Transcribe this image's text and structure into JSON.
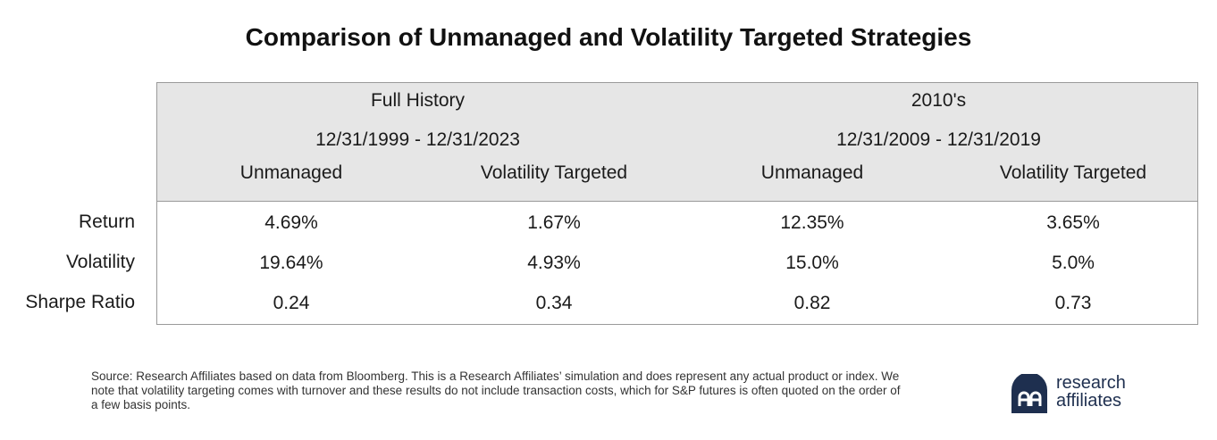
{
  "title": "Comparison of Unmanaged and Volatility Targeted Strategies",
  "groups": [
    {
      "title": "Full History",
      "range": "12/31/1999 - 12/31/2023"
    },
    {
      "title": "2010's",
      "range": "12/31/2009 - 12/31/2019"
    }
  ],
  "columns": [
    "Unmanaged",
    "Volatility Targeted",
    "Unmanaged",
    "Volatility Targeted"
  ],
  "rows": [
    {
      "label": "Return",
      "values": [
        "4.69%",
        "1.67%",
        "12.35%",
        "3.65%"
      ]
    },
    {
      "label": "Volatility",
      "values": [
        "19.64%",
        "4.93%",
        "15.0%",
        "5.0%"
      ]
    },
    {
      "label": "Sharpe Ratio",
      "values": [
        "0.24",
        "0.34",
        "0.82",
        "0.73"
      ]
    }
  ],
  "source": "Source: Research Affiliates based on data from Bloomberg. This is a Research Affiliates’ simulation and does represent any actual product or index. We note that volatility targeting comes with turnover and these results do not include transaction costs, which for S&P futures is often quoted on the order of a few basis points.",
  "logo": {
    "line1": "research",
    "line2": "affiliates",
    "color": "#1e2f4f"
  }
}
